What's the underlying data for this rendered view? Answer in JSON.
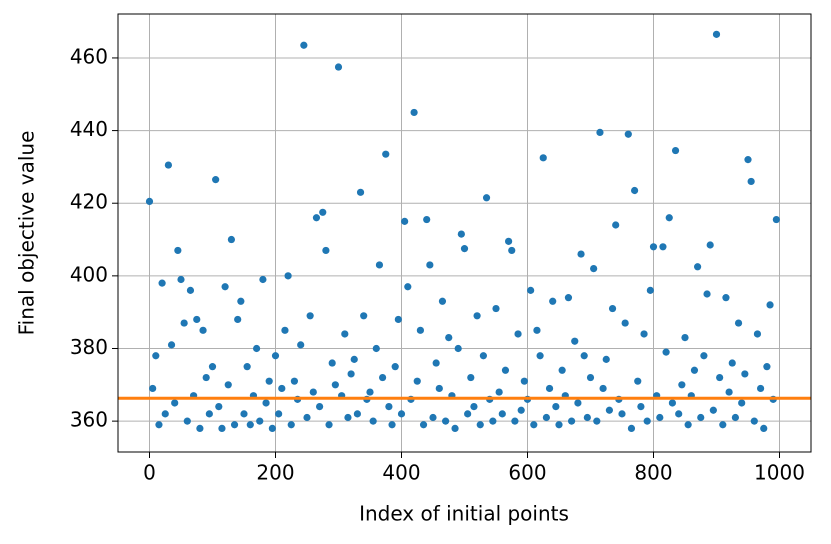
{
  "chart_data": {
    "type": "scatter",
    "xlabel": "Index of initial points",
    "ylabel": "Final objective value",
    "x": [
      0,
      5,
      10,
      15,
      20,
      25,
      30,
      35,
      40,
      45,
      50,
      55,
      60,
      65,
      70,
      75,
      80,
      85,
      90,
      95,
      100,
      105,
      110,
      115,
      120,
      125,
      130,
      135,
      140,
      145,
      150,
      155,
      160,
      165,
      170,
      175,
      180,
      185,
      190,
      195,
      200,
      205,
      210,
      215,
      220,
      225,
      230,
      235,
      240,
      245,
      250,
      255,
      260,
      265,
      270,
      275,
      280,
      285,
      290,
      295,
      300,
      305,
      310,
      315,
      320,
      325,
      330,
      335,
      340,
      345,
      350,
      355,
      360,
      365,
      370,
      375,
      380,
      385,
      390,
      395,
      400,
      405,
      410,
      415,
      420,
      425,
      430,
      435,
      440,
      445,
      450,
      455,
      460,
      465,
      470,
      475,
      480,
      485,
      490,
      495,
      500,
      505,
      510,
      515,
      520,
      525,
      530,
      535,
      540,
      545,
      550,
      555,
      560,
      565,
      570,
      575,
      580,
      585,
      590,
      595,
      600,
      605,
      610,
      615,
      620,
      625,
      630,
      635,
      640,
      645,
      650,
      655,
      660,
      665,
      670,
      675,
      680,
      685,
      690,
      695,
      700,
      705,
      710,
      715,
      720,
      725,
      730,
      735,
      740,
      745,
      750,
      755,
      760,
      765,
      770,
      775,
      780,
      785,
      790,
      795,
      800,
      805,
      810,
      815,
      820,
      825,
      830,
      835,
      840,
      845,
      850,
      855,
      860,
      865,
      870,
      875,
      880,
      885,
      890,
      895,
      900,
      905,
      910,
      915,
      920,
      925,
      930,
      935,
      940,
      945,
      950,
      955,
      960,
      965,
      970,
      975,
      980,
      985,
      990,
      995
    ],
    "values": [
      420.5,
      369,
      378,
      359,
      398,
      362,
      430.5,
      381,
      365,
      407,
      399,
      387,
      360,
      396,
      367,
      388,
      358,
      385,
      372,
      362,
      375,
      426.5,
      364,
      358,
      397,
      370,
      410,
      359,
      388,
      393,
      362,
      375,
      359,
      367,
      380,
      360,
      399,
      365,
      371,
      358,
      378,
      362,
      369,
      385,
      400,
      359,
      371,
      366,
      381,
      463.5,
      361,
      389,
      368,
      416,
      364,
      417.5,
      407,
      359,
      376,
      370,
      457.5,
      367,
      384,
      361,
      373,
      377,
      362,
      423,
      389,
      366,
      368,
      360,
      380,
      403,
      372,
      433.5,
      364,
      359,
      375,
      388,
      362,
      415,
      397,
      366,
      445,
      371,
      385,
      359,
      415.5,
      403,
      361,
      376,
      369,
      393,
      360,
      383,
      367,
      358,
      380,
      411.5,
      407.5,
      362,
      372,
      364,
      389,
      359,
      378,
      421.5,
      366,
      360,
      391,
      368,
      362,
      374,
      409.5,
      407,
      360,
      384,
      363,
      371,
      366,
      396,
      359,
      385,
      378,
      432.5,
      361,
      369,
      393,
      364,
      359,
      374,
      367,
      394,
      360,
      382,
      365,
      406,
      378,
      361,
      372,
      402,
      360,
      439.5,
      369,
      377,
      363,
      391,
      414,
      366,
      362,
      387,
      439,
      358,
      423.5,
      371,
      364,
      384,
      360,
      396,
      408,
      367,
      361,
      408,
      379,
      416,
      365,
      434.5,
      362,
      370,
      383,
      359,
      367,
      374,
      402.5,
      361,
      378,
      395,
      408.5,
      363,
      466.5,
      372,
      359,
      394,
      368,
      376,
      361,
      387,
      365,
      373,
      432,
      426,
      360,
      384,
      369,
      358,
      375,
      392,
      366,
      415.5
    ],
    "color": "#1f77b4",
    "hline": {
      "value": 366.3,
      "color": "#ff7f0e"
    },
    "xlim": [
      -50,
      1050
    ],
    "ylim": [
      351.5,
      472.1
    ],
    "xticks": [
      0,
      200,
      400,
      600,
      800,
      1000
    ],
    "yticks": [
      360,
      380,
      400,
      420,
      440,
      460
    ],
    "grid": true
  }
}
